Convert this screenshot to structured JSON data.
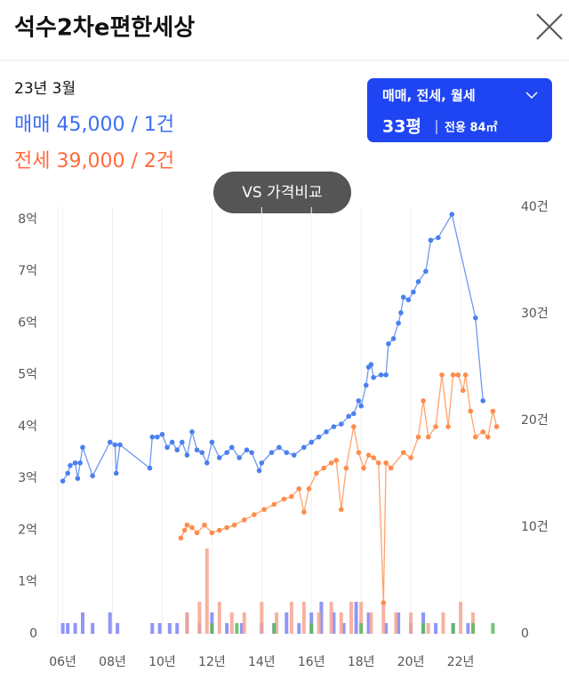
{
  "header": {
    "title": "석수2차e편한세상"
  },
  "summary": {
    "date": "23년 3월",
    "sale": "매매 45,000 / 1건",
    "jeonse": "전세 39,000 / 2건"
  },
  "filter": {
    "types": "매매, 전세, 월세",
    "size": "33평",
    "area": "전용 84㎡"
  },
  "compare_button": "VS 가격비교",
  "chart_data": {
    "type": "line",
    "xlim": [
      2005.8,
      2023.5
    ],
    "xticks": [
      {
        "value": 2006,
        "label": "06년"
      },
      {
        "value": 2008,
        "label": "08년"
      },
      {
        "value": 2010,
        "label": "10년"
      },
      {
        "value": 2012,
        "label": "12년"
      },
      {
        "value": 2014,
        "label": "14년"
      },
      {
        "value": 2016,
        "label": "16년"
      },
      {
        "value": 2018,
        "label": "18년"
      },
      {
        "value": 2020,
        "label": "20년"
      },
      {
        "value": 2022,
        "label": "22년"
      }
    ],
    "ylim": [
      0,
      8.24
    ],
    "yticks": [
      0,
      {
        "value": 1,
        "label": "1억"
      },
      {
        "value": 2,
        "label": "2억"
      },
      {
        "value": 3,
        "label": "3억"
      },
      {
        "value": 4,
        "label": "4억"
      },
      {
        "value": 5,
        "label": "5억"
      },
      {
        "value": 6,
        "label": "6억"
      },
      {
        "value": 7,
        "label": "7억"
      },
      {
        "value": 8,
        "label": "8억"
      }
    ],
    "y2lim": [
      0,
      40
    ],
    "y2ticks": [
      0,
      {
        "value": 10,
        "label": "10건"
      },
      {
        "value": 20,
        "label": "20건"
      },
      {
        "value": 30,
        "label": "30건"
      },
      {
        "value": 40,
        "label": "40건"
      }
    ],
    "grid": true,
    "series": [
      {
        "type": "bar",
        "axis": "y2",
        "color": "#7c84f4",
        "x": [
          2006.0,
          2006.2,
          2006.5,
          2006.8,
          2007.2,
          2007.9,
          2008.2,
          2009.6,
          2009.9,
          2010.3,
          2010.6,
          2011.0,
          2011.5,
          2012.0,
          2012.6,
          2013.2,
          2014.0,
          2014.5,
          2015.0,
          2015.5,
          2016.0,
          2016.4,
          2016.9,
          2017.3,
          2017.8,
          2018.3,
          2019.0,
          2019.5,
          2020.0,
          2020.5,
          2021.0,
          2021.7,
          2022.3
        ],
        "values": [
          1,
          1,
          1,
          2,
          1,
          2,
          1,
          1,
          1,
          1,
          1,
          2,
          1,
          2,
          1,
          1,
          1,
          1,
          2,
          1,
          2,
          3,
          2,
          1,
          3,
          2,
          1,
          2,
          1,
          2,
          1,
          1,
          1
        ]
      },
      {
        "type": "bar",
        "axis": "y2",
        "color": "#f6a591",
        "x": [
          2011.0,
          2011.5,
          2011.8,
          2012.3,
          2012.8,
          2013.3,
          2014.0,
          2014.6,
          2015.2,
          2015.7,
          2016.3,
          2016.8,
          2017.2,
          2017.6,
          2018.0,
          2018.4,
          2018.9,
          2019.4,
          2020.0,
          2020.7,
          2021.3,
          2022.0,
          2022.5
        ],
        "values": [
          2,
          3,
          8,
          3,
          2,
          2,
          3,
          2,
          3,
          3,
          2,
          3,
          2,
          3,
          3,
          2,
          3,
          2,
          2,
          1,
          2,
          3,
          2
        ]
      },
      {
        "type": "bar",
        "axis": "y2",
        "color": "#5cb85c",
        "x": [
          2012.0,
          2013.0,
          2014.5,
          2016.0,
          2018.0,
          2020.5,
          2021.7,
          2022.5,
          2023.3
        ],
        "values": [
          1,
          1,
          1,
          1,
          1,
          1,
          1,
          1,
          1
        ]
      },
      {
        "type": "line",
        "color": "#ff8c4a",
        "x": [
          2010.75,
          2010.9,
          2011.0,
          2011.2,
          2011.4,
          2011.7,
          2012.0,
          2012.3,
          2012.6,
          2012.9,
          2013.3,
          2013.7,
          2014.1,
          2014.5,
          2014.9,
          2015.2,
          2015.5,
          2015.7,
          2015.9,
          2016.2,
          2016.5,
          2016.8,
          2017.0,
          2017.2,
          2017.4,
          2017.7,
          2017.9,
          2018.1,
          2018.3,
          2018.5,
          2018.7,
          2018.9,
          2019.0,
          2019.2,
          2019.7,
          2020.0,
          2020.3,
          2020.5,
          2020.7,
          2021.0,
          2021.25,
          2021.5,
          2021.7,
          2021.9,
          2022.1,
          2022.2,
          2022.4,
          2022.6,
          2022.9,
          2023.1,
          2023.3,
          2023.45
        ],
        "values": [
          1.85,
          2.0,
          2.1,
          2.05,
          1.95,
          2.1,
          1.95,
          2.0,
          2.05,
          2.1,
          2.2,
          2.3,
          2.4,
          2.5,
          2.6,
          2.65,
          2.8,
          2.35,
          2.8,
          3.1,
          3.2,
          3.3,
          3.35,
          2.4,
          3.2,
          4.0,
          3.5,
          3.2,
          3.45,
          3.4,
          3.3,
          0.6,
          3.3,
          3.2,
          3.5,
          3.4,
          3.8,
          4.5,
          3.8,
          4.0,
          5.0,
          4.0,
          5.0,
          5.0,
          4.7,
          5.0,
          4.3,
          3.8,
          3.9,
          3.8,
          4.3,
          4.0
        ]
      },
      {
        "type": "line",
        "color": "#4a80ef",
        "x": [
          2006.0,
          2006.2,
          2006.3,
          2006.5,
          2006.6,
          2006.7,
          2006.8,
          2007.2,
          2007.9,
          2008.1,
          2008.15,
          2008.3,
          2009.5,
          2009.6,
          2009.8,
          2010.0,
          2010.2,
          2010.4,
          2010.6,
          2010.8,
          2011.0,
          2011.2,
          2011.4,
          2011.6,
          2011.8,
          2012.0,
          2012.3,
          2012.6,
          2012.8,
          2013.1,
          2013.4,
          2013.6,
          2013.9,
          2014.0,
          2014.4,
          2014.7,
          2015.0,
          2015.3,
          2015.7,
          2016.0,
          2016.3,
          2016.6,
          2016.9,
          2017.2,
          2017.5,
          2017.7,
          2017.9,
          2018.0,
          2018.2,
          2018.3,
          2018.4,
          2018.5,
          2018.8,
          2019.0,
          2019.1,
          2019.3,
          2019.5,
          2019.6,
          2019.7,
          2019.9,
          2020.1,
          2020.3,
          2020.6,
          2020.8,
          2021.1,
          2021.65,
          2022.6,
          2022.9
        ],
        "values": [
          2.95,
          3.1,
          3.25,
          3.3,
          3.0,
          3.3,
          3.6,
          3.05,
          3.7,
          3.65,
          3.1,
          3.65,
          3.2,
          3.8,
          3.8,
          3.85,
          3.6,
          3.7,
          3.55,
          3.7,
          3.45,
          3.9,
          3.55,
          3.5,
          3.3,
          3.7,
          3.4,
          3.5,
          3.6,
          3.4,
          3.55,
          3.5,
          3.15,
          3.3,
          3.5,
          3.6,
          3.5,
          3.45,
          3.6,
          3.7,
          3.8,
          3.9,
          4.0,
          4.05,
          4.2,
          4.25,
          4.5,
          4.4,
          4.8,
          5.15,
          5.2,
          4.95,
          5.0,
          5.0,
          5.6,
          5.7,
          6.0,
          6.2,
          6.5,
          6.45,
          6.6,
          6.8,
          7.0,
          7.6,
          7.65,
          8.1,
          6.1,
          4.5
        ]
      }
    ]
  }
}
